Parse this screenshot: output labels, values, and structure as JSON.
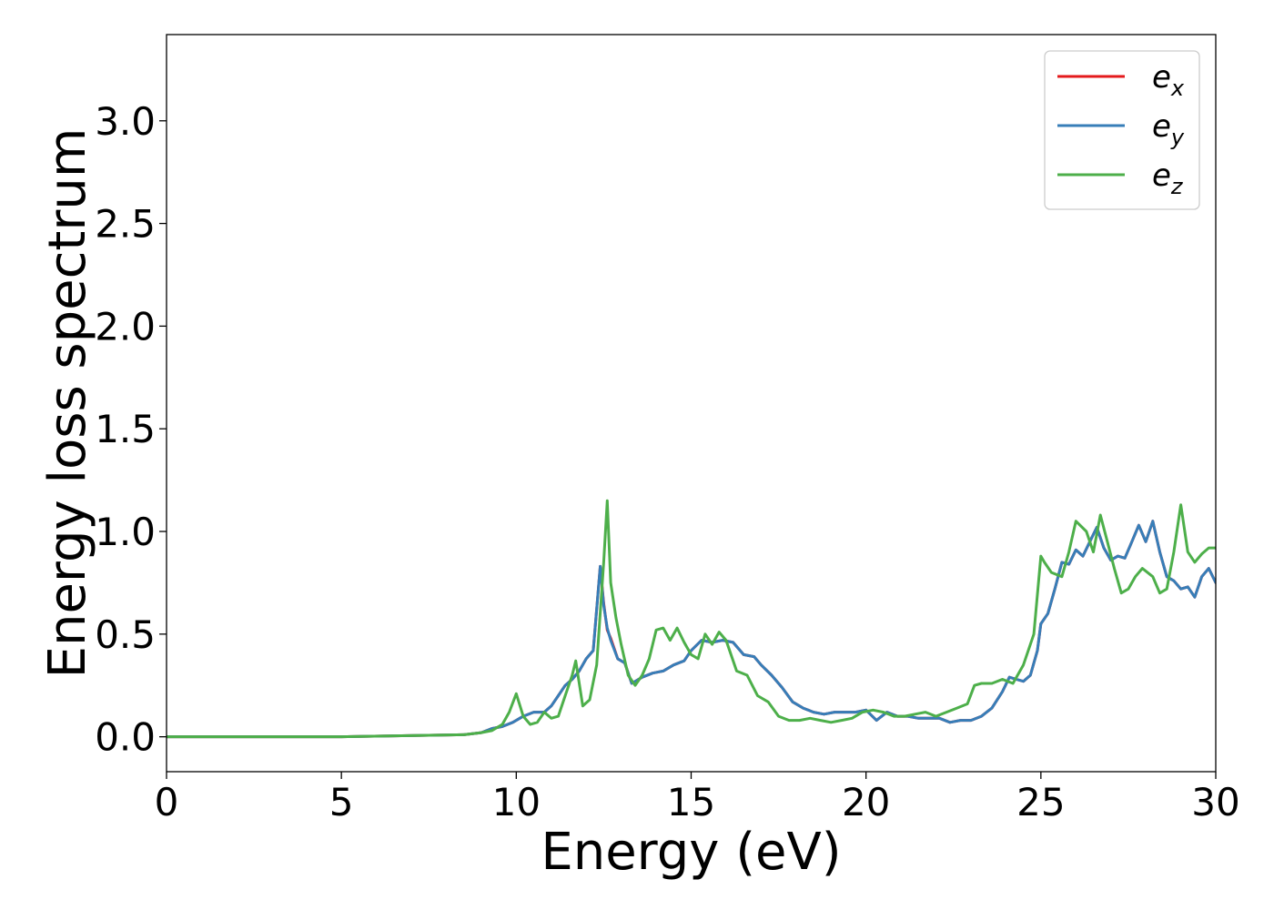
{
  "chart_data": {
    "type": "line",
    "title": "",
    "xlabel": "Energy (eV)",
    "ylabel": "Energy loss spectrum",
    "xlim": [
      0,
      30
    ],
    "ylim": [
      -0.17,
      3.42
    ],
    "xticks": [
      0,
      5,
      10,
      15,
      20,
      25,
      30
    ],
    "xtick_labels": [
      "0",
      "5",
      "10",
      "15",
      "20",
      "25",
      "30"
    ],
    "yticks": [
      0.0,
      0.5,
      1.0,
      1.5,
      2.0,
      2.5,
      3.0
    ],
    "ytick_labels": [
      "0.0",
      "0.5",
      "1.0",
      "1.5",
      "2.0",
      "2.5",
      "3.0"
    ],
    "grid": false,
    "legend_position": "top-right",
    "series": [
      {
        "name": "e_x",
        "label_base": "e",
        "label_sub": "x",
        "color": "#e41a1c",
        "x": [
          0,
          5,
          8.5,
          9.0,
          9.3,
          9.6,
          9.9,
          10.2,
          10.5,
          10.8,
          11.0,
          11.2,
          11.4,
          11.6,
          11.8,
          12.0,
          12.2,
          12.4,
          12.5,
          12.6,
          12.7,
          12.9,
          13.1,
          13.3,
          13.6,
          13.9,
          14.2,
          14.5,
          14.8,
          15.0,
          15.3,
          15.6,
          15.9,
          16.2,
          16.5,
          16.8,
          17.0,
          17.3,
          17.6,
          17.9,
          18.2,
          18.5,
          18.8,
          19.1,
          19.4,
          19.7,
          20.0,
          20.3,
          20.6,
          20.9,
          21.2,
          21.5,
          21.8,
          22.1,
          22.4,
          22.7,
          23.0,
          23.3,
          23.6,
          23.9,
          24.1,
          24.3,
          24.5,
          24.7,
          24.9,
          25.0,
          25.2,
          25.4,
          25.6,
          25.8,
          26.0,
          26.2,
          26.4,
          26.6,
          26.8,
          27.0,
          27.2,
          27.4,
          27.6,
          27.8,
          28.0,
          28.2,
          28.4,
          28.6,
          28.8,
          29.0,
          29.2,
          29.4,
          29.6,
          29.8,
          30.0
        ],
        "y": [
          0.0,
          0.0,
          0.01,
          0.02,
          0.04,
          0.05,
          0.07,
          0.1,
          0.12,
          0.12,
          0.15,
          0.2,
          0.25,
          0.28,
          0.32,
          0.38,
          0.42,
          0.83,
          0.65,
          0.52,
          0.48,
          0.38,
          0.36,
          0.26,
          0.29,
          0.31,
          0.32,
          0.35,
          0.37,
          0.42,
          0.47,
          0.46,
          0.47,
          0.46,
          0.4,
          0.39,
          0.35,
          0.3,
          0.24,
          0.17,
          0.14,
          0.12,
          0.11,
          0.12,
          0.12,
          0.12,
          0.13,
          0.08,
          0.12,
          0.1,
          0.1,
          0.09,
          0.09,
          0.09,
          0.07,
          0.08,
          0.08,
          0.1,
          0.14,
          0.22,
          0.29,
          0.28,
          0.27,
          0.3,
          0.42,
          0.55,
          0.6,
          0.72,
          0.85,
          0.84,
          0.91,
          0.88,
          0.95,
          1.02,
          0.92,
          0.86,
          0.88,
          0.87,
          0.95,
          1.03,
          0.95,
          1.05,
          0.9,
          0.78,
          0.76,
          0.72,
          0.73,
          0.68,
          0.78,
          0.82,
          0.75
        ]
      },
      {
        "name": "e_y",
        "label_base": "e",
        "label_sub": "y",
        "color": "#377eb8",
        "x": [
          0,
          5,
          8.5,
          9.0,
          9.3,
          9.6,
          9.9,
          10.2,
          10.5,
          10.8,
          11.0,
          11.2,
          11.4,
          11.6,
          11.8,
          12.0,
          12.2,
          12.4,
          12.5,
          12.6,
          12.7,
          12.9,
          13.1,
          13.3,
          13.6,
          13.9,
          14.2,
          14.5,
          14.8,
          15.0,
          15.3,
          15.6,
          15.9,
          16.2,
          16.5,
          16.8,
          17.0,
          17.3,
          17.6,
          17.9,
          18.2,
          18.5,
          18.8,
          19.1,
          19.4,
          19.7,
          20.0,
          20.3,
          20.6,
          20.9,
          21.2,
          21.5,
          21.8,
          22.1,
          22.4,
          22.7,
          23.0,
          23.3,
          23.6,
          23.9,
          24.1,
          24.3,
          24.5,
          24.7,
          24.9,
          25.0,
          25.2,
          25.4,
          25.6,
          25.8,
          26.0,
          26.2,
          26.4,
          26.6,
          26.8,
          27.0,
          27.2,
          27.4,
          27.6,
          27.8,
          28.0,
          28.2,
          28.4,
          28.6,
          28.8,
          29.0,
          29.2,
          29.4,
          29.6,
          29.8,
          30.0
        ],
        "y": [
          0.0,
          0.0,
          0.01,
          0.02,
          0.04,
          0.05,
          0.07,
          0.1,
          0.12,
          0.12,
          0.15,
          0.2,
          0.25,
          0.28,
          0.32,
          0.38,
          0.42,
          0.83,
          0.64,
          0.53,
          0.47,
          0.38,
          0.36,
          0.26,
          0.29,
          0.31,
          0.32,
          0.35,
          0.37,
          0.42,
          0.47,
          0.46,
          0.47,
          0.46,
          0.4,
          0.39,
          0.35,
          0.3,
          0.24,
          0.17,
          0.14,
          0.12,
          0.11,
          0.12,
          0.12,
          0.12,
          0.13,
          0.08,
          0.12,
          0.1,
          0.1,
          0.09,
          0.09,
          0.09,
          0.07,
          0.08,
          0.08,
          0.1,
          0.14,
          0.22,
          0.29,
          0.28,
          0.27,
          0.3,
          0.42,
          0.55,
          0.6,
          0.72,
          0.85,
          0.84,
          0.91,
          0.88,
          0.95,
          1.02,
          0.92,
          0.86,
          0.88,
          0.87,
          0.95,
          1.03,
          0.95,
          1.05,
          0.9,
          0.78,
          0.76,
          0.72,
          0.73,
          0.68,
          0.78,
          0.82,
          0.75
        ]
      },
      {
        "name": "e_z",
        "label_base": "e",
        "label_sub": "z",
        "color": "#4daf4a",
        "x": [
          0,
          5,
          8.5,
          9.0,
          9.3,
          9.6,
          9.8,
          10.0,
          10.2,
          10.4,
          10.6,
          10.8,
          11.0,
          11.2,
          11.4,
          11.6,
          11.7,
          11.9,
          12.1,
          12.3,
          12.5,
          12.6,
          12.7,
          12.85,
          13.0,
          13.2,
          13.4,
          13.6,
          13.8,
          14.0,
          14.2,
          14.4,
          14.6,
          14.8,
          15.0,
          15.2,
          15.4,
          15.6,
          15.8,
          16.0,
          16.3,
          16.6,
          16.9,
          17.2,
          17.5,
          17.8,
          18.1,
          18.4,
          18.7,
          19.0,
          19.3,
          19.6,
          19.9,
          20.2,
          20.5,
          20.8,
          21.1,
          21.4,
          21.7,
          22.0,
          22.3,
          22.6,
          22.9,
          23.1,
          23.3,
          23.6,
          23.9,
          24.2,
          24.5,
          24.8,
          25.0,
          25.1,
          25.3,
          25.6,
          25.8,
          26.0,
          26.3,
          26.5,
          26.7,
          26.9,
          27.1,
          27.3,
          27.5,
          27.7,
          27.9,
          28.2,
          28.4,
          28.6,
          28.8,
          29.0,
          29.2,
          29.4,
          29.6,
          29.8,
          30.0
        ],
        "y": [
          0.0,
          0.0,
          0.01,
          0.02,
          0.03,
          0.06,
          0.12,
          0.21,
          0.1,
          0.06,
          0.07,
          0.12,
          0.09,
          0.1,
          0.2,
          0.3,
          0.37,
          0.15,
          0.18,
          0.35,
          0.85,
          1.15,
          0.75,
          0.58,
          0.45,
          0.3,
          0.25,
          0.3,
          0.38,
          0.52,
          0.53,
          0.47,
          0.53,
          0.46,
          0.4,
          0.38,
          0.5,
          0.45,
          0.51,
          0.47,
          0.32,
          0.3,
          0.2,
          0.17,
          0.1,
          0.08,
          0.08,
          0.09,
          0.08,
          0.07,
          0.08,
          0.09,
          0.12,
          0.13,
          0.12,
          0.1,
          0.1,
          0.11,
          0.12,
          0.1,
          0.12,
          0.14,
          0.16,
          0.25,
          0.26,
          0.26,
          0.28,
          0.26,
          0.35,
          0.5,
          0.88,
          0.85,
          0.8,
          0.78,
          0.9,
          1.05,
          1.0,
          0.9,
          1.08,
          0.95,
          0.82,
          0.7,
          0.72,
          0.78,
          0.82,
          0.78,
          0.7,
          0.72,
          0.9,
          1.13,
          0.9,
          0.85,
          0.89,
          0.92,
          0.92
        ]
      }
    ]
  }
}
